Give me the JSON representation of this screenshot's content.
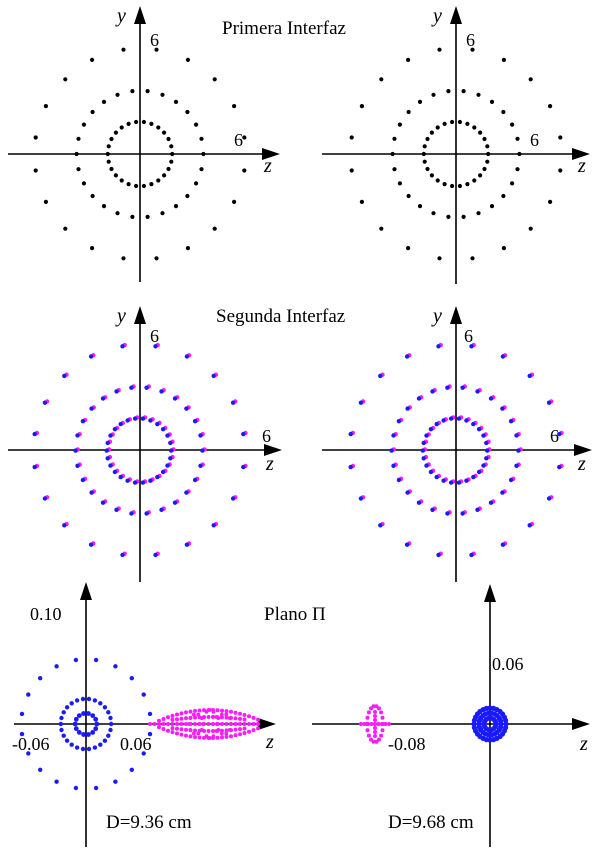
{
  "titles": {
    "first": "Primera Interfaz",
    "second": "Segunda Interfaz",
    "third": "Plano Π"
  },
  "axis_names": {
    "y": "y",
    "z": "z"
  },
  "ticks": {
    "six": "6",
    "p5_y": "0.10",
    "p5_xneg": "-0.06",
    "p5_xpos": "0.06",
    "p6_y": "0.06",
    "p6_xneg": "-0.08"
  },
  "captions": {
    "left": "D=9.36 cm",
    "right": "D=9.68 cm"
  },
  "colors": {
    "black": "#000000",
    "blue": "#1a1aff",
    "magenta": "#ff1aff"
  },
  "spot_rings": {
    "rows_1_2": [
      {
        "radius": 1.83,
        "count": 26
      },
      {
        "radius": 3.6,
        "count": 26
      },
      {
        "radius": 6.0,
        "count": 20
      }
    ],
    "row_3_left": [
      {
        "radius": 0.012,
        "count": 14
      },
      {
        "radius": 0.028,
        "count": 26
      },
      {
        "radius": 0.072,
        "count": 20
      }
    ]
  }
}
